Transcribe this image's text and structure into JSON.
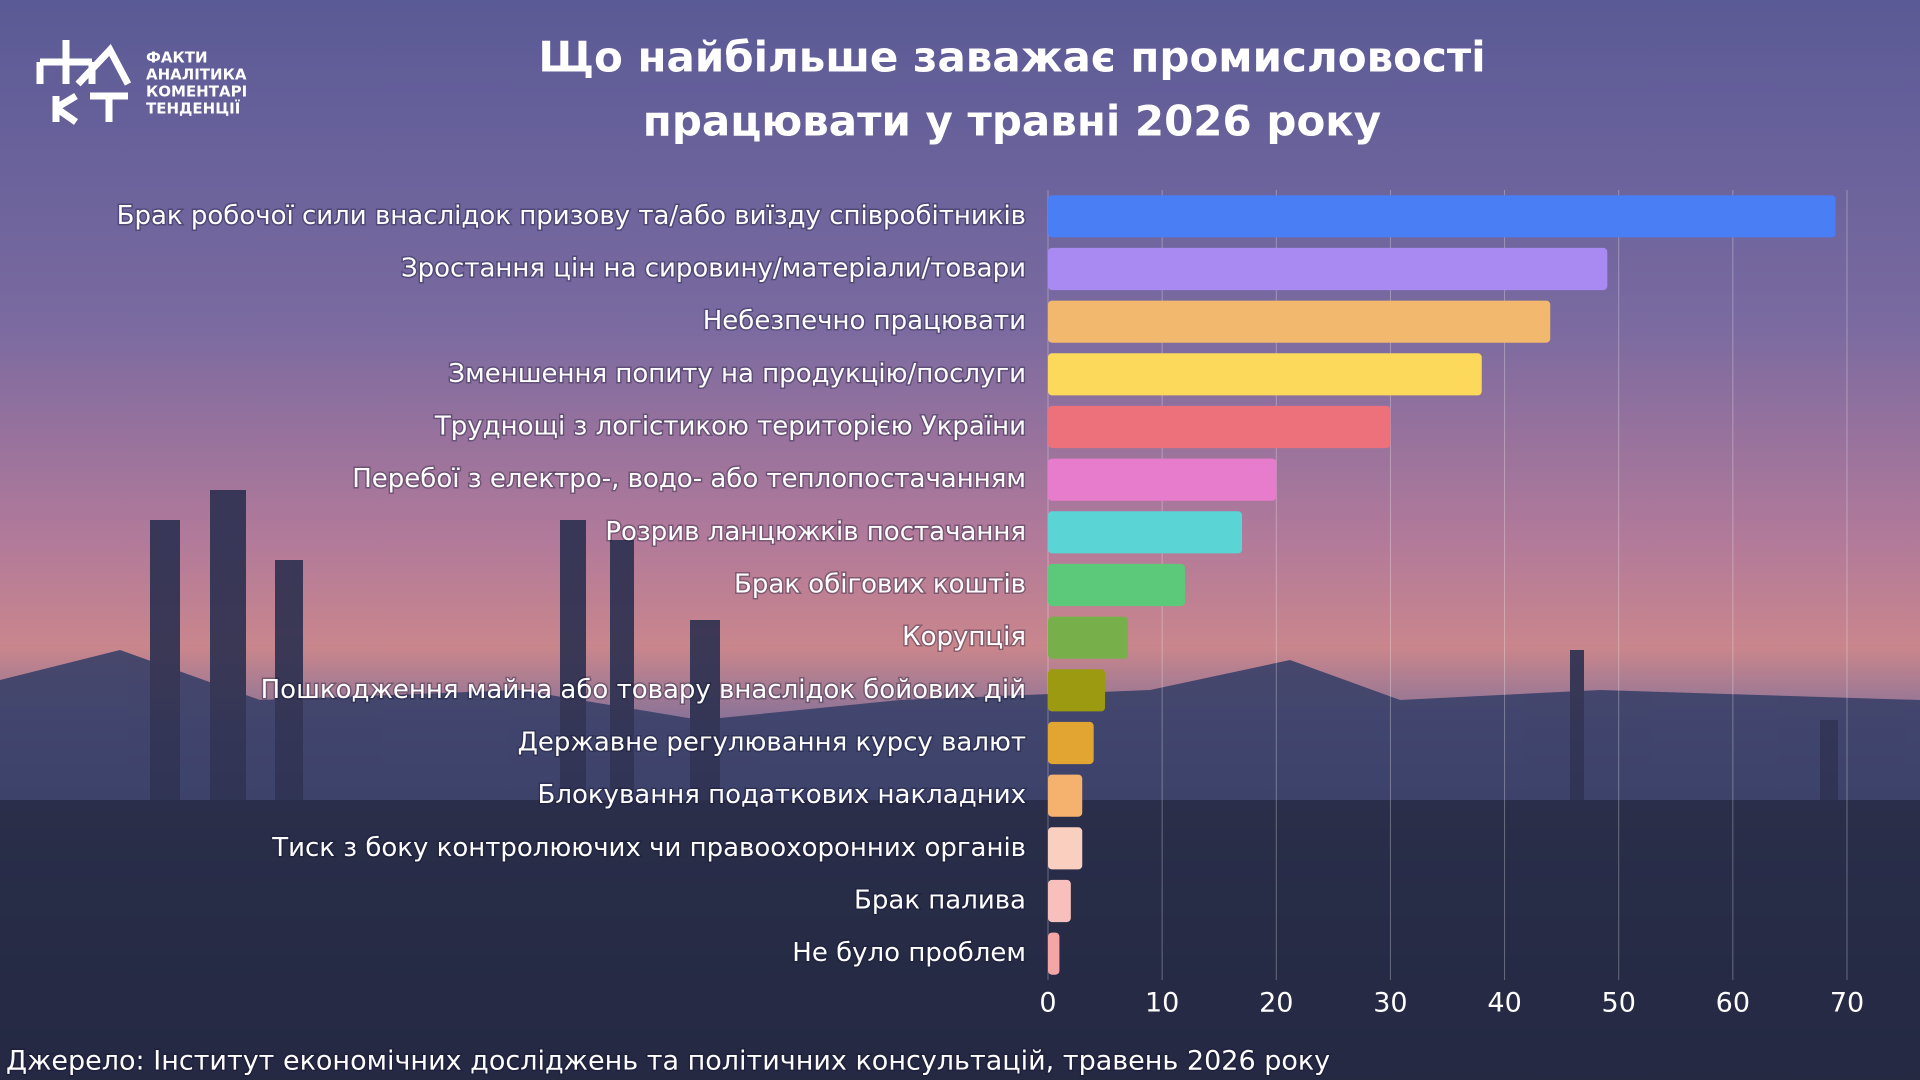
{
  "logo": {
    "lines": [
      "ФАКТИ",
      "АНАЛІТИКА",
      "КОМЕНТАРІ",
      "ТЕНДЕНЦІЇ"
    ]
  },
  "chart_data": {
    "type": "bar",
    "orientation": "horizontal",
    "title": [
      "Що найбільше заважає промисловості",
      "працювати у травні 2026 року"
    ],
    "categories": [
      "Брак робочої сили внаслідок призову та/або виїзду співробітників",
      "Зростання цін на сировину/матеріали/товари",
      "Небезпечно працювати",
      "Зменшення попиту на продукцію/послуги",
      "Труднощі з логістикою територією України",
      "Перебої з електро-, водо- або теплопостачанням",
      "Розрив ланцюжків постачання",
      "Брак обігових коштів",
      "Корупція",
      "Пошкодження майна або товару внаслідок бойових дій",
      "Державне регулювання курсу валют",
      "Блокування податкових накладних",
      "Тиск з боку контролюючих чи правоохоронних органів",
      "Брак палива",
      "Не було проблем"
    ],
    "values": [
      69,
      49,
      44,
      38,
      30,
      20,
      17,
      12,
      7,
      5,
      4,
      3,
      3,
      2,
      1
    ],
    "colors": [
      "#4a7ef5",
      "#a98af2",
      "#f2b86e",
      "#fcd95a",
      "#ec717a",
      "#e87ccc",
      "#5ad4d4",
      "#5cc97a",
      "#77b04a",
      "#9c9a10",
      "#e3a532",
      "#f5b26e",
      "#f9cfc0",
      "#f7c0bc",
      "#f4a6a6"
    ],
    "xlim": [
      0,
      70
    ],
    "xticks": [
      0,
      10,
      20,
      30,
      40,
      50,
      60,
      70
    ],
    "grid": true,
    "source": "Джерело: Інститут економічних досліджень та політичних консультацій, травень 2026 року"
  }
}
